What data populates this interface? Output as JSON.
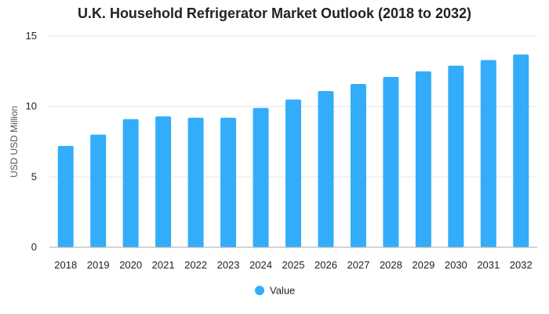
{
  "chart_data": {
    "type": "bar",
    "title": "U.K. Household Refrigerator Market Outlook (2018 to 2032)",
    "ylabel": "USD USD Million",
    "xlabel": "",
    "categories": [
      "2018",
      "2019",
      "2020",
      "2021",
      "2022",
      "2023",
      "2024",
      "2025",
      "2026",
      "2027",
      "2028",
      "2029",
      "2030",
      "2031",
      "2032"
    ],
    "series": [
      {
        "name": "Value",
        "values": [
          7.2,
          8.0,
          9.1,
          9.3,
          9.2,
          9.2,
          9.9,
          10.5,
          11.1,
          11.6,
          12.1,
          12.5,
          12.9,
          13.3,
          13.7
        ]
      }
    ],
    "ylim": [
      0,
      15
    ],
    "yticks": [
      "0",
      "5",
      "10",
      "15"
    ],
    "grid": true,
    "legend_position": "bottom",
    "colors": {
      "bar": "#33adfa",
      "grid": "#e6e6e6",
      "axis": "#aaaaaa"
    }
  }
}
